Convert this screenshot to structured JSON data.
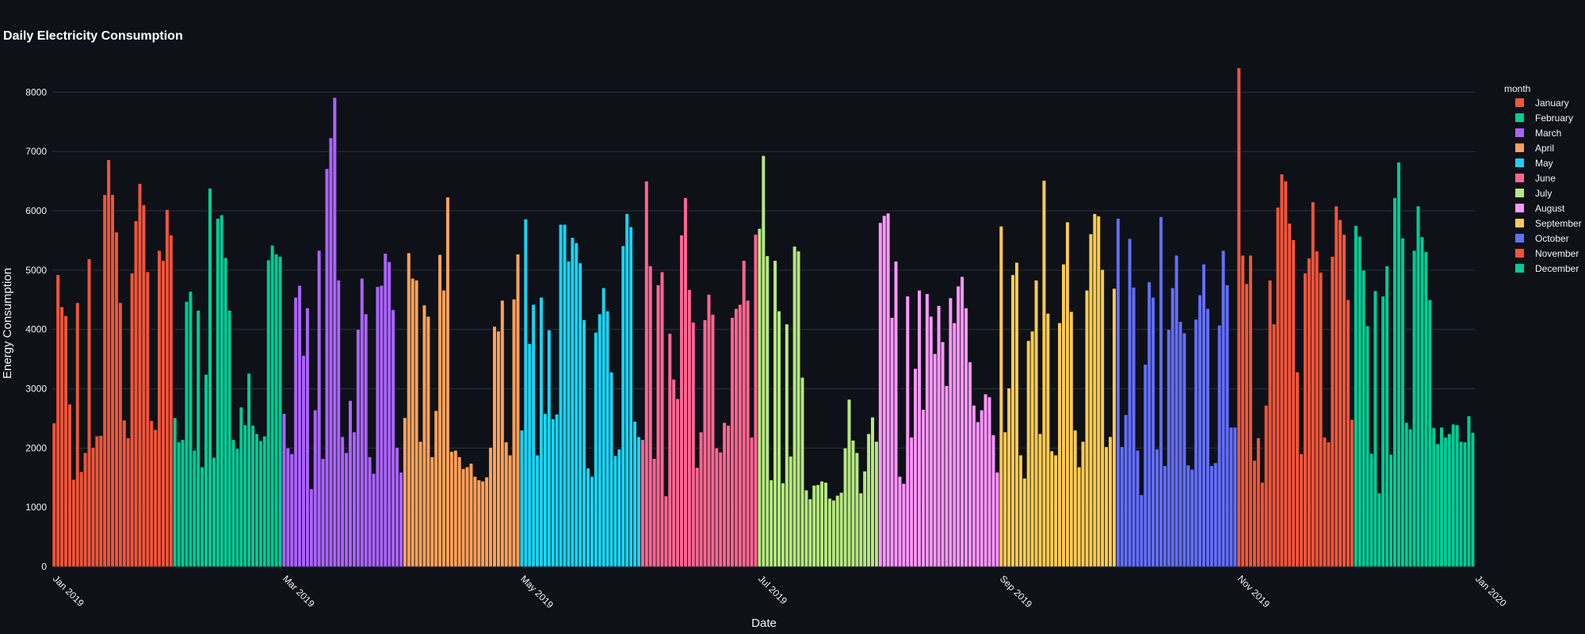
{
  "chart_data": {
    "type": "bar",
    "title": "Daily Electricity Consumption",
    "xlabel": "Date",
    "ylabel": "Energy Consumption",
    "ylim": [
      0,
      8700
    ],
    "yticks": [
      0,
      1000,
      2000,
      3000,
      4000,
      5000,
      6000,
      7000,
      8000
    ],
    "x_range": [
      "2019-01-01",
      "2020-01-01"
    ],
    "xticks": [
      {
        "date": "2019-01-01",
        "label": "Jan 2019"
      },
      {
        "date": "2019-03-01",
        "label": "Mar 2019"
      },
      {
        "date": "2019-05-01",
        "label": "May 2019"
      },
      {
        "date": "2019-07-01",
        "label": "Jul 2019"
      },
      {
        "date": "2019-09-01",
        "label": "Sep 2019"
      },
      {
        "date": "2019-11-01",
        "label": "Nov 2019"
      },
      {
        "date": "2020-01-01",
        "label": "Jan 2020"
      }
    ],
    "grid": true,
    "legend": {
      "title": "month",
      "placement": "right"
    },
    "series": [
      {
        "name": "January",
        "color": "#ef553b",
        "start_date": "2019-01-01",
        "values": [
          2420,
          4920,
          4380,
          4230,
          2740,
          1470,
          4450,
          1600,
          1920,
          5190,
          2010,
          2200,
          2210,
          6270,
          6860,
          6270,
          5640,
          4450,
          2470,
          2170,
          4950,
          5830,
          6460,
          6100,
          4970,
          2460,
          2310,
          5330,
          5160,
          6020,
          5590
        ]
      },
      {
        "name": "February",
        "color": "#00cc96",
        "start_date": "2019-02-01",
        "values": [
          2510,
          2100,
          2140,
          4470,
          4640,
          1960,
          4320,
          1680,
          3240,
          6380,
          1840,
          5870,
          5930,
          5210,
          4320,
          2140,
          1990,
          2690,
          2390,
          3260,
          2380,
          2240,
          2120,
          2200,
          5170,
          5420,
          5270,
          5230
        ]
      },
      {
        "name": "March",
        "color": "#ab63fa",
        "start_date": "2019-03-01",
        "values": [
          2580,
          2000,
          1900,
          4540,
          4740,
          3560,
          4360,
          1310,
          2640,
          5330,
          1820,
          6710,
          7230,
          7910,
          4830,
          2190,
          1920,
          2800,
          2270,
          4000,
          4860,
          4260,
          1850,
          1570,
          4720,
          4740,
          5280,
          5140,
          4330,
          2010,
          1590
        ]
      },
      {
        "name": "April",
        "color": "#ffa15a",
        "start_date": "2019-04-01",
        "values": [
          2510,
          5290,
          4860,
          4830,
          2110,
          4410,
          4220,
          1850,
          2630,
          5260,
          4660,
          6230,
          1940,
          1960,
          1850,
          1650,
          1680,
          1740,
          1520,
          1460,
          1440,
          1510,
          2010,
          4050,
          3970,
          4490,
          2100,
          1880,
          4510,
          5270
        ]
      },
      {
        "name": "May",
        "color": "#19d3f3",
        "start_date": "2019-05-01",
        "values": [
          2300,
          5860,
          3760,
          4420,
          1880,
          4540,
          2580,
          3990,
          2490,
          2570,
          5770,
          5770,
          5150,
          5550,
          5460,
          5120,
          4160,
          1660,
          1520,
          3950,
          4260,
          4700,
          4310,
          3280,
          1870,
          1980,
          5410,
          5950,
          5730,
          2450,
          2190
        ]
      },
      {
        "name": "June",
        "color": "#ff6692",
        "start_date": "2019-06-01",
        "values": [
          2140,
          6500,
          5070,
          1820,
          4750,
          4970,
          1190,
          3930,
          3160,
          2830,
          5590,
          6220,
          4670,
          4120,
          1670,
          2270,
          4160,
          4590,
          4250,
          2000,
          1930,
          2430,
          2380,
          4200,
          4350,
          4420,
          5160,
          4490,
          2180,
          5600
        ]
      },
      {
        "name": "July",
        "color": "#b6e880",
        "start_date": "2019-07-01",
        "values": [
          5700,
          6930,
          5240,
          1460,
          5160,
          4310,
          1410,
          4090,
          1860,
          5400,
          5320,
          3190,
          1290,
          1140,
          1370,
          1380,
          1440,
          1420,
          1150,
          1120,
          1200,
          1250,
          2000,
          2820,
          2130,
          1920,
          1240,
          1610,
          2240,
          2520,
          2110
        ]
      },
      {
        "name": "August",
        "color": "#ff97ff",
        "start_date": "2019-08-01",
        "values": [
          5800,
          5920,
          5960,
          4200,
          5150,
          1520,
          1400,
          4560,
          2180,
          3340,
          4660,
          2650,
          4600,
          4220,
          3590,
          4400,
          3790,
          3050,
          4530,
          4110,
          4730,
          4890,
          4360,
          3450,
          2720,
          2440,
          2640,
          2910,
          2860,
          2220,
          1590
        ]
      },
      {
        "name": "September",
        "color": "#fecb52",
        "start_date": "2019-09-01",
        "values": [
          5740,
          2270,
          3010,
          4920,
          5130,
          1880,
          1490,
          3810,
          3970,
          4830,
          2240,
          6510,
          4270,
          1950,
          1880,
          4110,
          5100,
          5810,
          4300,
          2300,
          1680,
          2110,
          4660,
          5610,
          5950,
          5910,
          5010,
          2020,
          2190,
          4690
        ]
      },
      {
        "name": "October",
        "color": "#636efa",
        "start_date": "2019-10-01",
        "values": [
          5870,
          2020,
          2560,
          5530,
          4710,
          1960,
          1210,
          3410,
          4800,
          4540,
          1980,
          5900,
          1700,
          4000,
          4700,
          5250,
          4130,
          3940,
          1710,
          1640,
          4170,
          4580,
          5100,
          4350,
          1700,
          1750,
          4070,
          5330,
          4750,
          2350,
          2350
        ]
      },
      {
        "name": "November",
        "color": "#ef553b",
        "start_date": "2019-11-01",
        "values": [
          8410,
          5250,
          4770,
          5250,
          1790,
          2170,
          1420,
          2720,
          4830,
          4090,
          6060,
          6620,
          6500,
          5790,
          5510,
          3280,
          1900,
          4950,
          5200,
          6150,
          5320,
          4960,
          2180,
          2100,
          5230,
          6080,
          5850,
          5600,
          4500,
          2480
        ]
      },
      {
        "name": "December",
        "color": "#00cc96",
        "start_date": "2019-12-01",
        "values": [
          5750,
          5570,
          5000,
          4060,
          1910,
          4650,
          1240,
          4560,
          5070,
          1890,
          6220,
          6820,
          5540,
          2430,
          2320,
          5330,
          6080,
          5560,
          5310,
          4500,
          2340,
          2070,
          2350,
          2180,
          2240,
          2400,
          2390,
          2110,
          2100,
          2540,
          2260
        ]
      }
    ]
  }
}
